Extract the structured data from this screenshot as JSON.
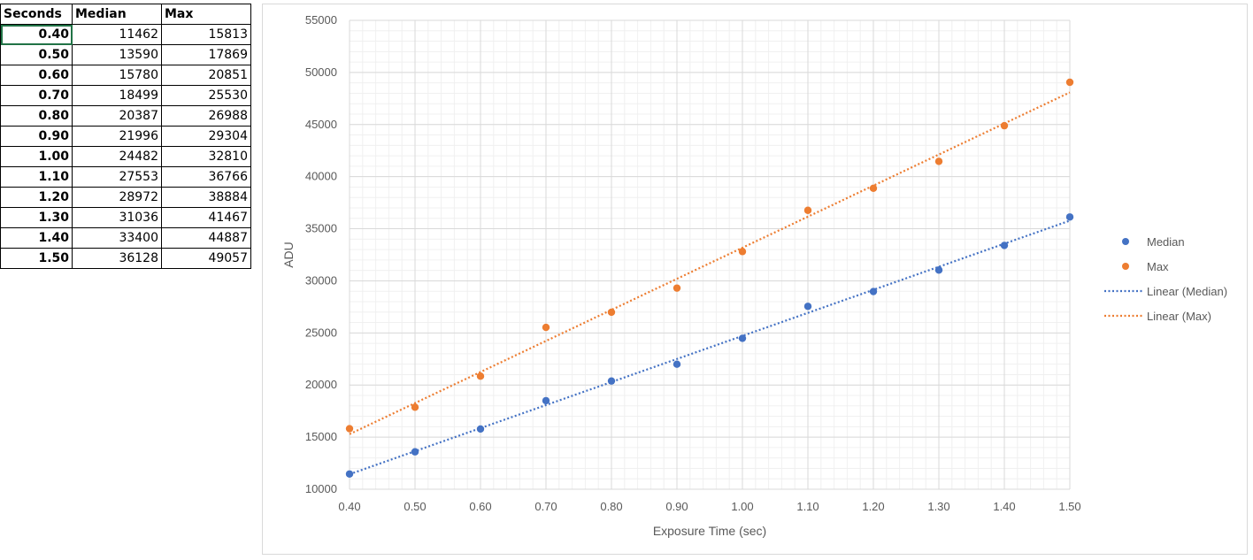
{
  "table": {
    "headers": [
      "Seconds",
      "Median",
      "Max"
    ],
    "rows": [
      [
        "0.40",
        "11462",
        "15813"
      ],
      [
        "0.50",
        "13590",
        "17869"
      ],
      [
        "0.60",
        "15780",
        "20851"
      ],
      [
        "0.70",
        "18499",
        "25530"
      ],
      [
        "0.80",
        "20387",
        "26988"
      ],
      [
        "0.90",
        "21996",
        "29304"
      ],
      [
        "1.00",
        "24482",
        "32810"
      ],
      [
        "1.10",
        "27553",
        "36766"
      ],
      [
        "1.20",
        "28972",
        "38884"
      ],
      [
        "1.30",
        "31036",
        "41467"
      ],
      [
        "1.40",
        "33400",
        "44887"
      ],
      [
        "1.50",
        "36128",
        "49057"
      ]
    ]
  },
  "chart_data": {
    "type": "scatter",
    "x": [
      0.4,
      0.5,
      0.6,
      0.7,
      0.8,
      0.9,
      1.0,
      1.1,
      1.2,
      1.3,
      1.4,
      1.5
    ],
    "series": [
      {
        "name": "Median",
        "color": "#4472C4",
        "values": [
          11462,
          13590,
          15780,
          18499,
          20387,
          21996,
          24482,
          27553,
          28972,
          31036,
          33400,
          36128
        ]
      },
      {
        "name": "Max",
        "color": "#ED7D31",
        "values": [
          15813,
          17869,
          20851,
          25530,
          26988,
          29304,
          32810,
          36766,
          38884,
          41467,
          44887,
          49057
        ]
      }
    ],
    "trendlines": [
      {
        "name": "Linear (Median)",
        "color": "#4472C4"
      },
      {
        "name": "Linear (Max)",
        "color": "#ED7D31"
      }
    ],
    "xlabel": "Exposure Time (sec)",
    "ylabel": "ADU",
    "xlim": [
      0.4,
      1.5
    ],
    "ylim": [
      10000,
      55000
    ],
    "xticks": [
      "0.40",
      "0.50",
      "0.60",
      "0.70",
      "0.80",
      "0.90",
      "1.00",
      "1.10",
      "1.20",
      "1.30",
      "1.40",
      "1.50"
    ],
    "yticks": [
      "10000",
      "15000",
      "20000",
      "25000",
      "30000",
      "35000",
      "40000",
      "45000",
      "50000",
      "55000"
    ],
    "grid": true,
    "minor_grid": true,
    "legend_position": "right"
  }
}
